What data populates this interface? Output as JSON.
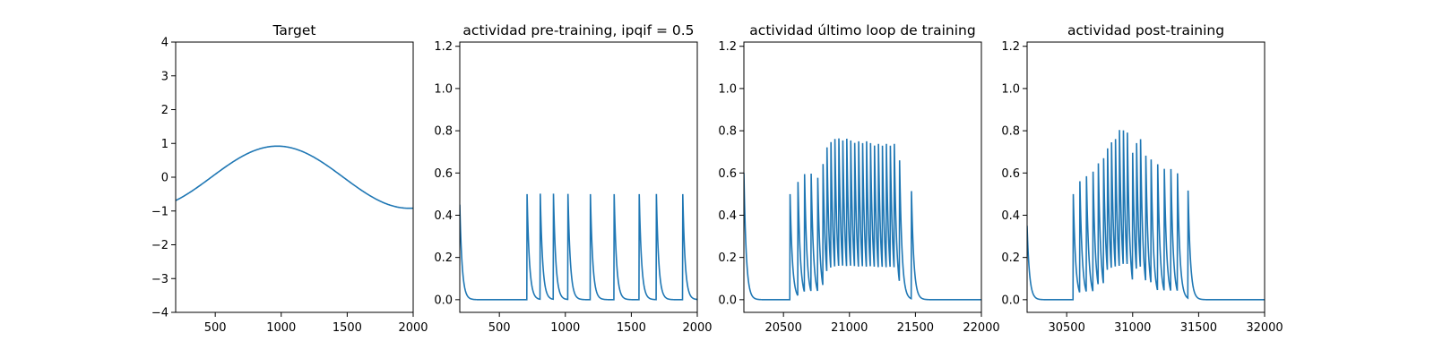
{
  "figure": {
    "background": "#ffffff",
    "line_color": "#1f77b4"
  },
  "chart_data": [
    {
      "type": "line",
      "title": "Target",
      "xlim": [
        200,
        2000
      ],
      "ylim": [
        -4,
        4
      ],
      "xticks": [
        500,
        1000,
        1500,
        2000
      ],
      "yticks": [
        -4,
        -3,
        -2,
        -1,
        0,
        1,
        2,
        3,
        4
      ],
      "xtick_labels": [
        "500",
        "1000",
        "1500",
        "2000"
      ],
      "ytick_labels": [
        "−4",
        "−3",
        "−2",
        "−1",
        "0",
        "1",
        "2",
        "3",
        "4"
      ],
      "signal": {
        "kind": "sine",
        "amplitude": 0.92,
        "period": 2000,
        "peak_x": 970
      },
      "series": [
        {
          "x": [
            200,
            400,
            600,
            800,
            970,
            1200,
            1400,
            1600,
            1800,
            2000
          ],
          "y": [
            -0.65,
            -0.22,
            0.32,
            0.77,
            0.92,
            0.62,
            0.13,
            -0.42,
            -0.82,
            -0.92
          ]
        }
      ]
    },
    {
      "type": "line",
      "title": "actividad pre-training, ipqif = 0.5",
      "xlim": [
        200,
        2000
      ],
      "ylim": [
        -0.06,
        1.22
      ],
      "xticks": [
        500,
        1000,
        1500,
        2000
      ],
      "yticks": [
        0.0,
        0.2,
        0.4,
        0.6,
        0.8,
        1.0,
        1.2
      ],
      "xtick_labels": [
        "500",
        "1000",
        "1500",
        "2000"
      ],
      "ytick_labels": [
        "0.0",
        "0.2",
        "0.4",
        "0.6",
        "0.8",
        "1.0",
        "1.2"
      ],
      "signal": {
        "kind": "spikes",
        "decay": 18,
        "initial_value": 0.45,
        "spike_x": [
          710,
          810,
          910,
          1020,
          1190,
          1370,
          1560,
          1690,
          1890
        ],
        "spike_peak": [
          0.5,
          0.5,
          0.5,
          0.5,
          0.5,
          0.5,
          0.5,
          0.5,
          0.5
        ]
      }
    },
    {
      "type": "line",
      "title": "actividad último loop de training",
      "xlim": [
        20200,
        22000
      ],
      "ylim": [
        -0.06,
        1.22
      ],
      "xticks": [
        20500,
        21000,
        21500,
        22000
      ],
      "yticks": [
        0.0,
        0.2,
        0.4,
        0.6,
        0.8,
        1.0,
        1.2
      ],
      "xtick_labels": [
        "20500",
        "21000",
        "21500",
        "22000"
      ],
      "ytick_labels": [
        "0.0",
        "0.2",
        "0.4",
        "0.6",
        "0.8",
        "1.0",
        "1.2"
      ],
      "signal": {
        "kind": "spikes",
        "decay": 18,
        "initial_value": 0.6,
        "spike_x": [
          20550,
          20610,
          20660,
          20710,
          20760,
          20800,
          20830,
          20860,
          20890,
          20920,
          20950,
          20980,
          21010,
          21040,
          21070,
          21100,
          21130,
          21160,
          21190,
          21220,
          21250,
          21280,
          21310,
          21340,
          21380,
          21470
        ],
        "spike_peak": [
          0.5,
          0.54,
          0.56,
          0.56,
          0.54,
          0.58,
          0.6,
          0.61,
          0.62,
          0.62,
          0.61,
          0.62,
          0.61,
          0.6,
          0.61,
          0.6,
          0.61,
          0.6,
          0.59,
          0.6,
          0.59,
          0.6,
          0.59,
          0.6,
          0.58,
          0.51
        ]
      }
    },
    {
      "type": "line",
      "title": "actividad post-training",
      "xlim": [
        30200,
        32000
      ],
      "ylim": [
        -0.06,
        1.22
      ],
      "xticks": [
        30500,
        31000,
        31500,
        32000
      ],
      "yticks": [
        0.0,
        0.2,
        0.4,
        0.6,
        0.8,
        1.0,
        1.2
      ],
      "xtick_labels": [
        "30500",
        "31000",
        "31500",
        "32000"
      ],
      "ytick_labels": [
        "0.0",
        "0.2",
        "0.4",
        "0.6",
        "0.8",
        "1.0",
        "1.2"
      ],
      "signal": {
        "kind": "spikes",
        "decay": 18,
        "initial_value": 0.35,
        "spike_x": [
          30550,
          30600,
          30650,
          30700,
          30740,
          30780,
          30810,
          30840,
          30870,
          30900,
          30930,
          30960,
          31000,
          31030,
          31060,
          31100,
          31140,
          31190,
          31240,
          31290,
          31340,
          31420
        ],
        "spike_peak": [
          0.5,
          0.53,
          0.55,
          0.57,
          0.58,
          0.6,
          0.59,
          0.61,
          0.62,
          0.66,
          0.65,
          0.64,
          0.61,
          0.61,
          0.62,
          0.6,
          0.59,
          0.6,
          0.58,
          0.58,
          0.56,
          0.51
        ]
      }
    }
  ]
}
